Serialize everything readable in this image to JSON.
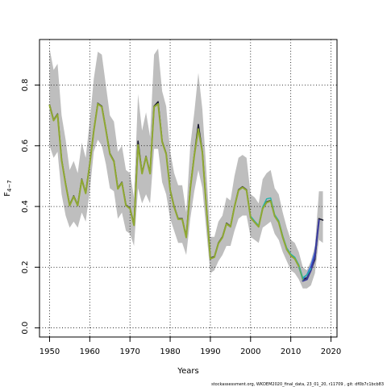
{
  "chart_data": {
    "type": "line",
    "title": "",
    "xlabel": "Years",
    "ylabel_main": "F",
    "ylabel_sub": "4−7",
    "xlim": [
      1947.5,
      2021.5
    ],
    "ylim": [
      -0.03,
      0.95
    ],
    "xticks": [
      1950,
      1960,
      1970,
      1980,
      1990,
      2000,
      2010,
      2020
    ],
    "yticks": [
      0.0,
      0.2,
      0.4,
      0.6,
      0.8
    ],
    "ytick_labels": [
      "0.0",
      "0.2",
      "0.4",
      "0.6",
      "0.8"
    ],
    "grid": true,
    "footer": "stockassessment.org, WKDEM2020_final_data, 23_01_20, r11709 , git: df0b7c1bcb83",
    "band": {
      "x": [
        1950,
        1951,
        1952,
        1953,
        1954,
        1955,
        1956,
        1957,
        1958,
        1959,
        1960,
        1961,
        1962,
        1963,
        1964,
        1965,
        1966,
        1967,
        1968,
        1969,
        1970,
        1971,
        1972,
        1973,
        1974,
        1975,
        1976,
        1977,
        1978,
        1979,
        1980,
        1981,
        1982,
        1983,
        1984,
        1985,
        1986,
        1987,
        1988,
        1989,
        1990,
        1991,
        1992,
        1993,
        1994,
        1995,
        1996,
        1997,
        1998,
        1999,
        2000,
        2001,
        2002,
        2003,
        2004,
        2005,
        2006,
        2007,
        2008,
        2009,
        2010,
        2011,
        2012,
        2013,
        2014,
        2015,
        2016,
        2017,
        2018
      ],
      "upper": [
        0.92,
        0.85,
        0.87,
        0.7,
        0.62,
        0.52,
        0.55,
        0.51,
        0.61,
        0.56,
        0.68,
        0.82,
        0.91,
        0.9,
        0.8,
        0.7,
        0.68,
        0.58,
        0.6,
        0.52,
        0.51,
        0.43,
        0.77,
        0.65,
        0.71,
        0.63,
        0.9,
        0.92,
        0.78,
        0.73,
        0.58,
        0.51,
        0.47,
        0.47,
        0.38,
        0.6,
        0.71,
        0.84,
        0.72,
        0.52,
        0.3,
        0.3,
        0.35,
        0.37,
        0.43,
        0.42,
        0.5,
        0.56,
        0.57,
        0.56,
        0.44,
        0.43,
        0.41,
        0.49,
        0.51,
        0.52,
        0.46,
        0.44,
        0.38,
        0.33,
        0.29,
        0.28,
        0.25,
        0.2,
        0.19,
        0.22,
        0.27,
        0.45,
        0.45
      ],
      "lower": [
        0.6,
        0.56,
        0.58,
        0.44,
        0.37,
        0.33,
        0.35,
        0.33,
        0.38,
        0.35,
        0.45,
        0.58,
        0.62,
        0.6,
        0.54,
        0.46,
        0.45,
        0.36,
        0.38,
        0.32,
        0.31,
        0.27,
        0.46,
        0.41,
        0.44,
        0.41,
        0.59,
        0.59,
        0.48,
        0.44,
        0.36,
        0.32,
        0.28,
        0.28,
        0.24,
        0.36,
        0.45,
        0.52,
        0.46,
        0.32,
        0.18,
        0.19,
        0.22,
        0.24,
        0.27,
        0.27,
        0.32,
        0.36,
        0.37,
        0.37,
        0.3,
        0.29,
        0.28,
        0.33,
        0.34,
        0.35,
        0.31,
        0.29,
        0.25,
        0.22,
        0.19,
        0.18,
        0.16,
        0.13,
        0.13,
        0.14,
        0.18,
        0.29,
        0.28
      ]
    },
    "series": [
      {
        "color": "#1a1a2e",
        "width": 1.6,
        "x": [
          1950,
          1951,
          1952,
          1953,
          1954,
          1955,
          1956,
          1957,
          1958,
          1959,
          1960,
          1961,
          1962,
          1963,
          1964,
          1965,
          1966,
          1967,
          1968,
          1969,
          1970,
          1971,
          1972,
          1973,
          1974,
          1975,
          1976,
          1977,
          1978,
          1979,
          1980,
          1981,
          1982,
          1983,
          1984,
          1985,
          1986,
          1987,
          1988,
          1989,
          1990,
          1991,
          1992,
          1993,
          1994,
          1995,
          1996,
          1997,
          1998,
          1999,
          2000,
          2001,
          2002,
          2003,
          2004,
          2005,
          2006,
          2007,
          2008,
          2009,
          2010,
          2011,
          2012,
          2013,
          2014,
          2015,
          2016,
          2017,
          2018
        ],
        "y": [
          0.735,
          0.685,
          0.705,
          0.555,
          0.475,
          0.405,
          0.435,
          0.405,
          0.49,
          0.445,
          0.54,
          0.65,
          0.74,
          0.73,
          0.655,
          0.575,
          0.55,
          0.46,
          0.48,
          0.405,
          0.395,
          0.34,
          0.615,
          0.51,
          0.565,
          0.51,
          0.73,
          0.745,
          0.615,
          0.575,
          0.455,
          0.4,
          0.36,
          0.36,
          0.3,
          0.46,
          0.57,
          0.67,
          0.58,
          0.4,
          0.23,
          0.235,
          0.28,
          0.3,
          0.345,
          0.335,
          0.4,
          0.455,
          0.465,
          0.455,
          0.365,
          0.35,
          0.335,
          0.395,
          0.415,
          0.42,
          0.37,
          0.35,
          0.3,
          0.26,
          0.24,
          0.23,
          0.205,
          0.16,
          0.165,
          0.19,
          0.225,
          0.36,
          0.355
        ]
      },
      {
        "color": "#3a6ee8",
        "width": 1.4,
        "x": [
          2012,
          2013,
          2014,
          2015,
          2016,
          2017
        ],
        "y": [
          0.2,
          0.16,
          0.175,
          0.205,
          0.25,
          0.355
        ]
      },
      {
        "color": "#3b3b9a",
        "width": 2.2,
        "x": [
          2013,
          2014,
          2015,
          2016,
          2017
        ],
        "y": [
          0.155,
          0.16,
          0.19,
          0.235,
          0.355
        ]
      },
      {
        "color": "#20b2aa",
        "width": 1.4,
        "x": [
          2000,
          2001,
          2002,
          2003,
          2004,
          2005,
          2006,
          2007,
          2008,
          2009,
          2010,
          2011,
          2012,
          2013,
          2014,
          2015
        ],
        "y": [
          0.368,
          0.352,
          0.337,
          0.398,
          0.425,
          0.428,
          0.373,
          0.353,
          0.303,
          0.263,
          0.243,
          0.233,
          0.208,
          0.165,
          0.175,
          0.195
        ]
      },
      {
        "color": "#5fae5f",
        "width": 1.6,
        "x": [
          1990,
          1991,
          1992,
          1993,
          1994,
          1995,
          1996,
          1997,
          1998,
          1999,
          2000,
          2001,
          2002,
          2003,
          2004,
          2005,
          2006,
          2007,
          2008,
          2009,
          2010,
          2011,
          2012,
          2013
        ],
        "y": [
          0.228,
          0.233,
          0.278,
          0.298,
          0.343,
          0.333,
          0.398,
          0.453,
          0.463,
          0.453,
          0.363,
          0.348,
          0.333,
          0.393,
          0.413,
          0.418,
          0.368,
          0.348,
          0.298,
          0.258,
          0.238,
          0.228,
          0.203,
          0.158
        ]
      },
      {
        "color": "#8fa832",
        "width": 2.0,
        "x": [
          1950,
          1951,
          1952,
          1953,
          1954,
          1955,
          1956,
          1957,
          1958,
          1959,
          1960,
          1961,
          1962,
          1963,
          1964,
          1965,
          1966,
          1967,
          1968,
          1969,
          1970,
          1971,
          1972,
          1973,
          1974,
          1975,
          1976,
          1977,
          1978,
          1979,
          1980,
          1981,
          1982,
          1983,
          1984,
          1985,
          1986,
          1987,
          1988,
          1989,
          1990,
          1991,
          1992,
          1993,
          1994,
          1995,
          1996,
          1997,
          1998,
          1999,
          2000,
          2001,
          2002,
          2003,
          2004,
          2005,
          2006,
          2007,
          2008,
          2009,
          2010,
          2011,
          2012
        ],
        "y": [
          0.733,
          0.683,
          0.703,
          0.553,
          0.473,
          0.403,
          0.433,
          0.403,
          0.488,
          0.443,
          0.538,
          0.648,
          0.738,
          0.728,
          0.653,
          0.573,
          0.548,
          0.458,
          0.478,
          0.403,
          0.393,
          0.338,
          0.603,
          0.508,
          0.563,
          0.508,
          0.728,
          0.738,
          0.613,
          0.573,
          0.453,
          0.398,
          0.358,
          0.358,
          0.298,
          0.458,
          0.568,
          0.655,
          0.578,
          0.398,
          0.228,
          0.233,
          0.278,
          0.298,
          0.343,
          0.333,
          0.398,
          0.453,
          0.463,
          0.453,
          0.363,
          0.348,
          0.333,
          0.393,
          0.413,
          0.418,
          0.368,
          0.348,
          0.298,
          0.258,
          0.238,
          0.228,
          0.203
        ]
      }
    ]
  }
}
